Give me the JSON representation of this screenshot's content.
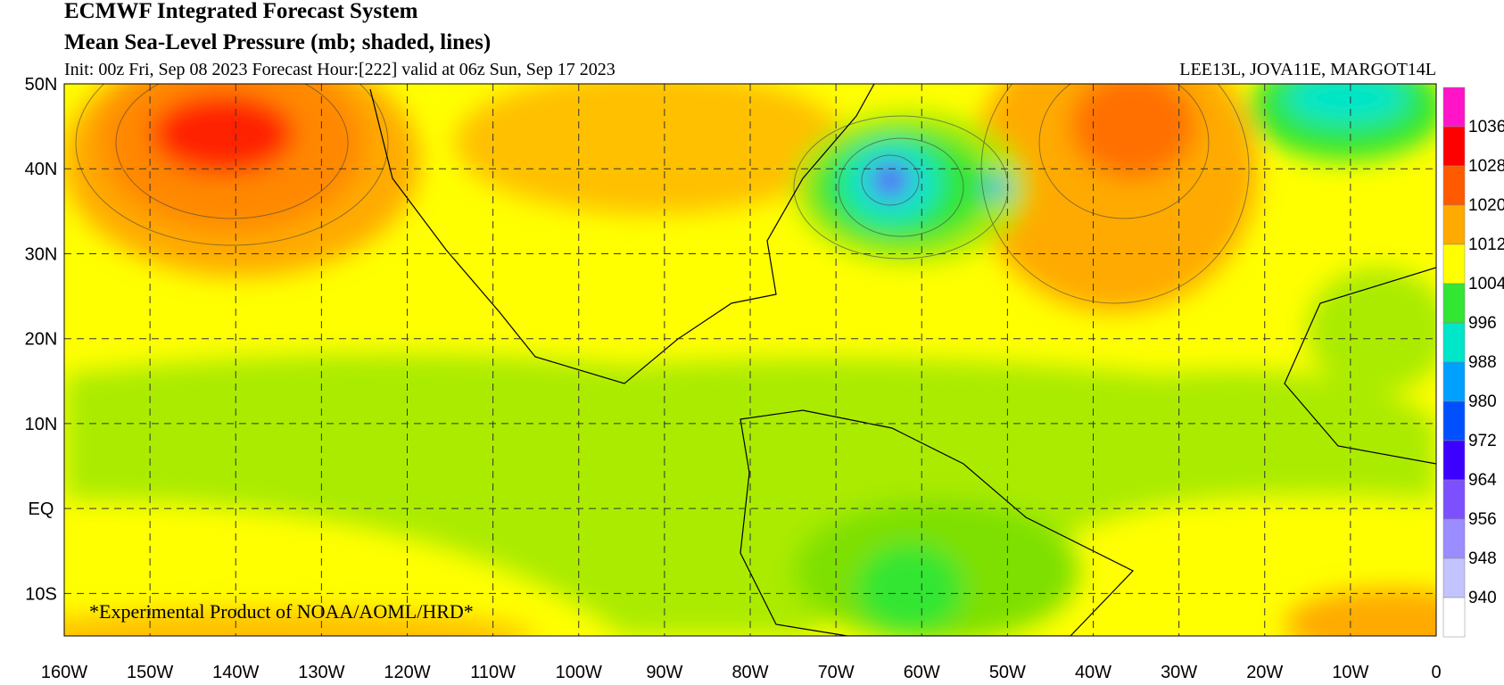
{
  "header": {
    "title": "ECMWF Integrated Forecast System",
    "subtitle": "Mean Sea-Level Pressure (mb; shaded, lines)",
    "init": "Init: 00z Fri, Sep 08 2023  Forecast Hour:[222]  valid at 06z Sun, Sep 17 2023",
    "storms": "LEE13L, JOVA11E, MARGOT14L"
  },
  "map": {
    "lat_labels": [
      "50N",
      "40N",
      "30N",
      "20N",
      "10N",
      "EQ",
      "10S"
    ],
    "lon_labels": [
      "160W",
      "150W",
      "140W",
      "130W",
      "120W",
      "110W",
      "100W",
      "90W",
      "80W",
      "70W",
      "60W",
      "50W",
      "40W",
      "30W",
      "20W",
      "10W",
      "0"
    ],
    "watermark": "*Experimental Product of NOAA/AOML/HRD*"
  },
  "colorbar": {
    "labels": [
      1036,
      1028,
      1020,
      1012,
      1004,
      996,
      988,
      980,
      972,
      964,
      956,
      948,
      940
    ],
    "colors": [
      "#ff14c8",
      "#ff0000",
      "#ff5a00",
      "#ffaa00",
      "#ffff00",
      "#32e632",
      "#00e6c8",
      "#00a0ff",
      "#0050ff",
      "#3c00ff",
      "#7d50ff",
      "#9b8cff",
      "#c3c3ff",
      "#ffffff"
    ]
  }
}
